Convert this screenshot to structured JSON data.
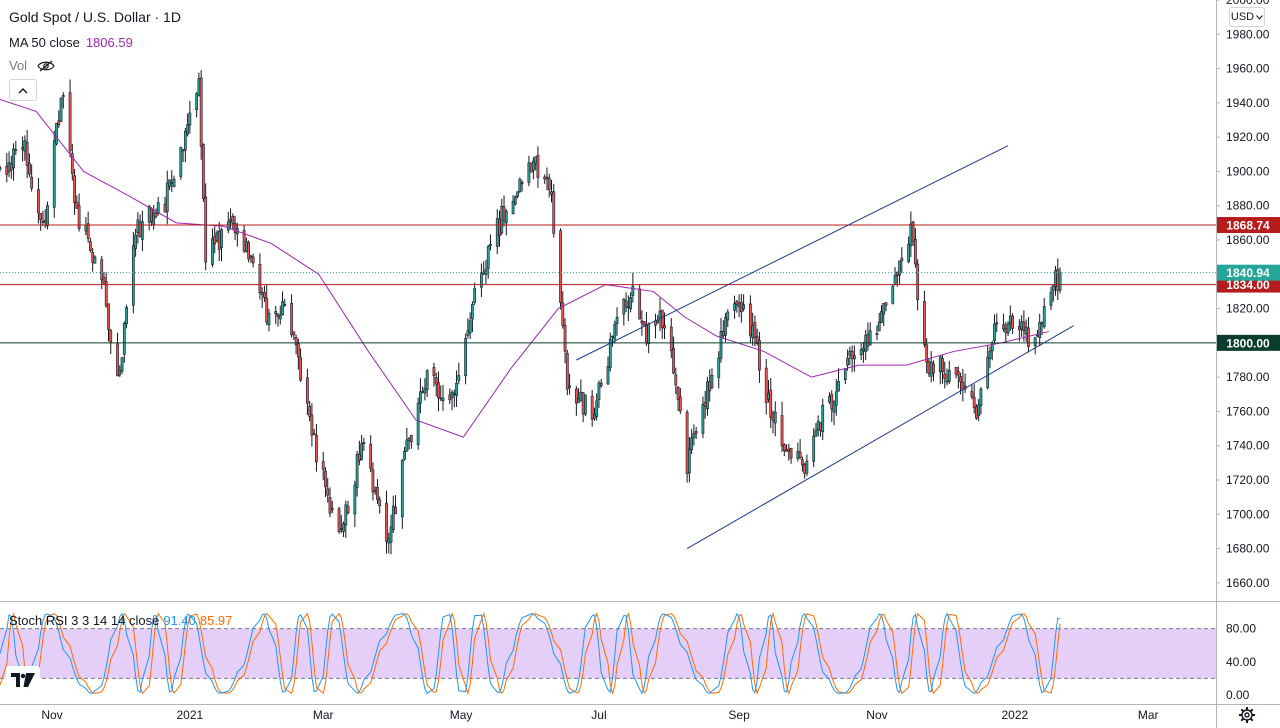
{
  "header": {
    "title": "Gold Spot / U.S. Dollar · 1D",
    "ma_label": "MA 50 close",
    "ma_value": "1806.59",
    "vol_label": "Vol",
    "currency": "USD"
  },
  "indicator": {
    "label": "Stoch RSI 3 3 14 14 close",
    "k_value": "91.40",
    "d_value": "85.97"
  },
  "colors": {
    "up": "#26a69a",
    "down": "#ef5350",
    "wick": "#131722",
    "ma": "#9c27b0",
    "channel": "#1e3a8a",
    "resistance": "#b71c1c",
    "support": "#0b3d2e",
    "stoch_k": "#2196f3",
    "stoch_d": "#ff6d00",
    "stoch_band": "#e1c6f7"
  },
  "chart_data": {
    "type": "candlestick",
    "y_axis": {
      "min": 1650,
      "max": 2000,
      "ticks": [
        1660,
        1680,
        1700,
        1720,
        1740,
        1760,
        1780,
        1800,
        1820,
        1840,
        1860,
        1880,
        1900,
        1920,
        1940,
        1960,
        1980,
        2000
      ]
    },
    "x_axis": {
      "labels": [
        {
          "date": "2020-11-01",
          "label": "Nov"
        },
        {
          "date": "2021-01-01",
          "label": "2021"
        },
        {
          "date": "2021-03-01",
          "label": "Mar"
        },
        {
          "date": "2021-05-01",
          "label": "May"
        },
        {
          "date": "2021-07-01",
          "label": "Jul"
        },
        {
          "date": "2021-09-01",
          "label": "Sep"
        },
        {
          "date": "2021-11-01",
          "label": "Nov"
        },
        {
          "date": "2022-01-01",
          "label": "2022"
        },
        {
          "date": "2022-03-01",
          "label": "Mar"
        }
      ],
      "range": [
        "2020-10-09",
        "2022-03-31"
      ]
    },
    "price_path": [
      {
        "date": "2020-10-09",
        "close": 1900
      },
      {
        "date": "2020-10-20",
        "close": 1912
      },
      {
        "date": "2020-10-28",
        "close": 1868
      },
      {
        "date": "2020-11-06",
        "close": 1950
      },
      {
        "date": "2020-11-12",
        "close": 1875
      },
      {
        "date": "2020-11-23",
        "close": 1840
      },
      {
        "date": "2020-11-30",
        "close": 1776
      },
      {
        "date": "2020-12-08",
        "close": 1865
      },
      {
        "date": "2020-12-21",
        "close": 1882
      },
      {
        "date": "2021-01-05",
        "close": 1948
      },
      {
        "date": "2021-01-08",
        "close": 1850
      },
      {
        "date": "2021-01-20",
        "close": 1870
      },
      {
        "date": "2021-01-29",
        "close": 1848
      },
      {
        "date": "2021-02-05",
        "close": 1814
      },
      {
        "date": "2021-02-12",
        "close": 1825
      },
      {
        "date": "2021-02-26",
        "close": 1735
      },
      {
        "date": "2021-03-08",
        "close": 1684
      },
      {
        "date": "2021-03-18",
        "close": 1740
      },
      {
        "date": "2021-03-30",
        "close": 1684
      },
      {
        "date": "2021-04-05",
        "close": 1730
      },
      {
        "date": "2021-04-16",
        "close": 1778
      },
      {
        "date": "2021-04-29",
        "close": 1770
      },
      {
        "date": "2021-05-07",
        "close": 1831
      },
      {
        "date": "2021-05-21",
        "close": 1880
      },
      {
        "date": "2021-06-01",
        "close": 1905
      },
      {
        "date": "2021-06-09",
        "close": 1895
      },
      {
        "date": "2021-06-17",
        "close": 1773
      },
      {
        "date": "2021-06-29",
        "close": 1760
      },
      {
        "date": "2021-07-07",
        "close": 1803
      },
      {
        "date": "2021-07-15",
        "close": 1830
      },
      {
        "date": "2021-07-22",
        "close": 1805
      },
      {
        "date": "2021-07-30",
        "close": 1815
      },
      {
        "date": "2021-08-06",
        "close": 1762
      },
      {
        "date": "2021-08-09",
        "close": 1730
      },
      {
        "date": "2021-08-20",
        "close": 1783
      },
      {
        "date": "2021-08-27",
        "close": 1816
      },
      {
        "date": "2021-09-03",
        "close": 1826
      },
      {
        "date": "2021-09-10",
        "close": 1788
      },
      {
        "date": "2021-09-16",
        "close": 1755
      },
      {
        "date": "2021-09-29",
        "close": 1726
      },
      {
        "date": "2021-10-08",
        "close": 1757
      },
      {
        "date": "2021-10-22",
        "close": 1795
      },
      {
        "date": "2021-11-05",
        "close": 1818
      },
      {
        "date": "2021-11-16",
        "close": 1865
      },
      {
        "date": "2021-11-23",
        "close": 1788
      },
      {
        "date": "2021-12-03",
        "close": 1783
      },
      {
        "date": "2021-12-15",
        "close": 1762
      },
      {
        "date": "2021-12-24",
        "close": 1810
      },
      {
        "date": "2022-01-04",
        "close": 1815
      },
      {
        "date": "2022-01-07",
        "close": 1797
      },
      {
        "date": "2022-01-14",
        "close": 1817
      },
      {
        "date": "2022-01-19",
        "close": 1840
      },
      {
        "date": "2022-01-21",
        "close": 1834
      }
    ],
    "last_close": 1840.94,
    "moving_average": {
      "name": "MA 50 close",
      "points": [
        {
          "date": "2020-10-09",
          "value": 1942
        },
        {
          "date": "2020-10-25",
          "value": 1935
        },
        {
          "date": "2020-11-15",
          "value": 1900
        },
        {
          "date": "2020-12-06",
          "value": 1885
        },
        {
          "date": "2020-12-26",
          "value": 1870
        },
        {
          "date": "2021-01-16",
          "value": 1868
        },
        {
          "date": "2021-02-06",
          "value": 1858
        },
        {
          "date": "2021-02-27",
          "value": 1840
        },
        {
          "date": "2021-03-21",
          "value": 1795
        },
        {
          "date": "2021-04-11",
          "value": 1755
        },
        {
          "date": "2021-05-02",
          "value": 1745
        },
        {
          "date": "2021-05-23",
          "value": 1785
        },
        {
          "date": "2021-06-13",
          "value": 1820
        },
        {
          "date": "2021-07-04",
          "value": 1834
        },
        {
          "date": "2021-07-25",
          "value": 1830
        },
        {
          "date": "2021-08-08",
          "value": 1815
        },
        {
          "date": "2021-08-22",
          "value": 1804
        },
        {
          "date": "2021-09-12",
          "value": 1795
        },
        {
          "date": "2021-10-03",
          "value": 1780
        },
        {
          "date": "2021-10-24",
          "value": 1787
        },
        {
          "date": "2021-11-14",
          "value": 1787
        },
        {
          "date": "2021-12-05",
          "value": 1795
        },
        {
          "date": "2021-12-26",
          "value": 1800
        },
        {
          "date": "2022-01-16",
          "value": 1806.59
        }
      ]
    },
    "horizontal_levels": [
      {
        "value": 1868.74,
        "label": "1868.74",
        "color": "#b71c1c"
      },
      {
        "value": 1834.0,
        "label": "1834.00",
        "color": "#b71c1c"
      },
      {
        "value": 1800.0,
        "label": "1800.00",
        "color": "#0b3d2e"
      }
    ],
    "channel": {
      "lower": [
        {
          "date": "2021-08-09",
          "value": 1680
        },
        {
          "date": "2022-01-27",
          "value": 1810
        }
      ],
      "upper": [
        {
          "date": "2021-06-21",
          "value": 1790
        },
        {
          "date": "2021-12-29",
          "value": 1915
        }
      ]
    },
    "stoch_rsi": {
      "ticks": [
        0,
        40,
        80
      ],
      "band": [
        20,
        80
      ],
      "k_last": 91.4,
      "d_last": 85.97
    }
  }
}
